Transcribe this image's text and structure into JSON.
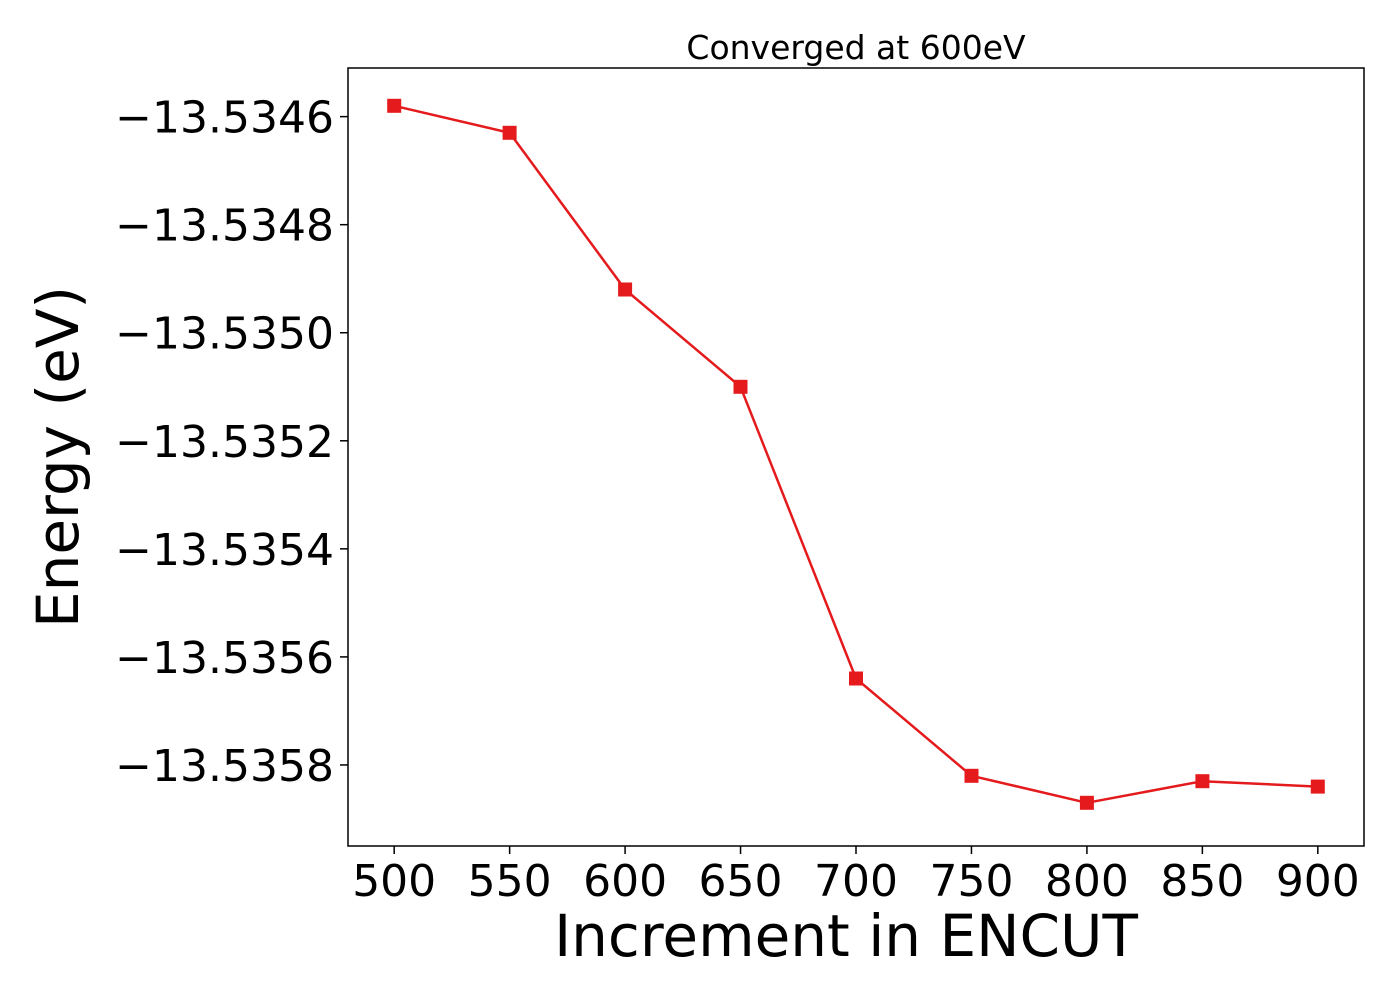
{
  "chart_data": {
    "type": "line",
    "title": "Converged at 600eV",
    "xlabel": "Increment in ENCUT",
    "ylabel": "Energy (eV)",
    "x": [
      500,
      550,
      600,
      650,
      700,
      750,
      800,
      850,
      900
    ],
    "series": [
      {
        "values": [
          -13.53458,
          -13.53463,
          -13.53492,
          -13.5351,
          -13.53564,
          -13.53582,
          -13.53587,
          -13.53583,
          -13.53584
        ],
        "color": "#e41a1c",
        "marker": "square"
      }
    ],
    "xticks": [
      500,
      550,
      600,
      650,
      700,
      750,
      800,
      850,
      900
    ],
    "xtick_labels": [
      "500",
      "550",
      "600",
      "650",
      "700",
      "750",
      "800",
      "850",
      "900"
    ],
    "yticks": [
      -13.5346,
      -13.5348,
      -13.535,
      -13.5352,
      -13.5354,
      -13.5356,
      -13.5358
    ],
    "ytick_labels": [
      "−13.5346",
      "−13.5348",
      "−13.5350",
      "−13.5352",
      "−13.5354",
      "−13.5356",
      "−13.5358"
    ],
    "xlim": [
      480,
      920
    ],
    "ylim": [
      -13.53595,
      -13.53451
    ],
    "grid": false,
    "legend": "none"
  }
}
